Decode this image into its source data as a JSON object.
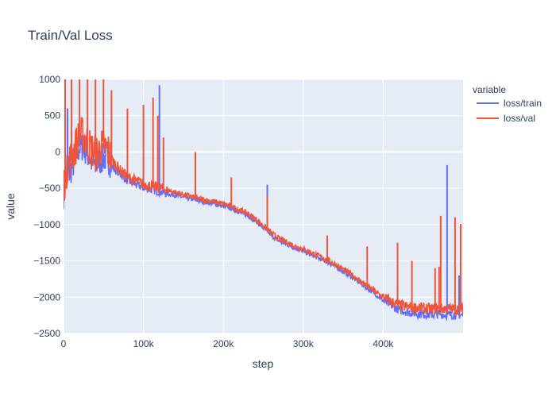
{
  "chart_data": {
    "type": "line",
    "title": "Train/Val Loss",
    "xlabel": "step",
    "ylabel": "value",
    "xlim": [
      0,
      500000
    ],
    "ylim": [
      -2500,
      1000
    ],
    "x_ticks": [
      {
        "value": 0,
        "label": "0"
      },
      {
        "value": 100000,
        "label": "100k"
      },
      {
        "value": 200000,
        "label": "200k"
      },
      {
        "value": 300000,
        "label": "300k"
      },
      {
        "value": 400000,
        "label": "400k"
      }
    ],
    "y_ticks": [
      {
        "value": -2500,
        "label": "−2500"
      },
      {
        "value": -2000,
        "label": "−2000"
      },
      {
        "value": -1500,
        "label": "−1500"
      },
      {
        "value": -1000,
        "label": "−1000"
      },
      {
        "value": -500,
        "label": "−500"
      },
      {
        "value": 0,
        "label": "0"
      },
      {
        "value": 500,
        "label": "500"
      },
      {
        "value": 1000,
        "label": "1000"
      }
    ],
    "grid": true,
    "legend": {
      "title": "variable",
      "position": "right"
    },
    "series": [
      {
        "name": "loss/train",
        "color": "#636efa",
        "x": [
          0,
          5000,
          10000,
          15000,
          20000,
          25000,
          30000,
          35000,
          40000,
          45000,
          50000,
          55000,
          60000,
          70000,
          80000,
          90000,
          100000,
          110000,
          120000,
          130000,
          140000,
          150000,
          160000,
          170000,
          180000,
          190000,
          200000,
          210000,
          220000,
          230000,
          240000,
          250000,
          260000,
          270000,
          280000,
          290000,
          300000,
          310000,
          320000,
          330000,
          340000,
          350000,
          360000,
          370000,
          380000,
          390000,
          400000,
          410000,
          420000,
          430000,
          440000,
          450000,
          460000,
          470000,
          480000,
          490000,
          500000
        ],
        "y": [
          -600,
          -350,
          -250,
          -100,
          50,
          50,
          -50,
          -150,
          -200,
          -150,
          -100,
          -100,
          -200,
          -300,
          -400,
          -450,
          -500,
          -520,
          -550,
          -580,
          -600,
          -630,
          -650,
          -680,
          -700,
          -720,
          -750,
          -780,
          -830,
          -880,
          -950,
          -1050,
          -1150,
          -1230,
          -1280,
          -1330,
          -1370,
          -1420,
          -1470,
          -1520,
          -1580,
          -1650,
          -1720,
          -1800,
          -1880,
          -1960,
          -2050,
          -2120,
          -2180,
          -2210,
          -2230,
          -2240,
          -2250,
          -2240,
          -2250,
          -2250,
          -2250
        ],
        "spikes": [
          {
            "x": 5000,
            "y": 600
          },
          {
            "x": 120000,
            "y": 920
          },
          {
            "x": 255000,
            "y": -450
          },
          {
            "x": 480000,
            "y": -180
          },
          {
            "x": 495000,
            "y": -1700
          }
        ]
      },
      {
        "name": "loss/val",
        "color": "#ef553b",
        "x": [
          0,
          5000,
          10000,
          15000,
          20000,
          25000,
          30000,
          35000,
          40000,
          45000,
          50000,
          55000,
          60000,
          70000,
          80000,
          90000,
          100000,
          110000,
          120000,
          130000,
          140000,
          150000,
          160000,
          170000,
          180000,
          190000,
          200000,
          210000,
          220000,
          230000,
          240000,
          250000,
          260000,
          270000,
          280000,
          290000,
          300000,
          310000,
          320000,
          330000,
          340000,
          350000,
          360000,
          370000,
          380000,
          390000,
          400000,
          410000,
          420000,
          430000,
          440000,
          450000,
          460000,
          470000,
          480000,
          490000,
          500000
        ],
        "y": [
          -500,
          -200,
          -100,
          50,
          200,
          200,
          100,
          0,
          -50,
          0,
          50,
          0,
          -100,
          -250,
          -350,
          -400,
          -450,
          -480,
          -500,
          -530,
          -560,
          -590,
          -620,
          -650,
          -670,
          -690,
          -720,
          -750,
          -800,
          -850,
          -920,
          -1020,
          -1120,
          -1200,
          -1250,
          -1300,
          -1340,
          -1390,
          -1440,
          -1490,
          -1550,
          -1620,
          -1690,
          -1770,
          -1850,
          -1930,
          -2000,
          -2070,
          -2120,
          -2140,
          -2150,
          -2160,
          -2170,
          -2160,
          -2170,
          -2170,
          -2170
        ],
        "spikes": [
          {
            "x": 2000,
            "y": 1000
          },
          {
            "x": 10000,
            "y": 1000
          },
          {
            "x": 20000,
            "y": 1000
          },
          {
            "x": 30000,
            "y": 1000
          },
          {
            "x": 40000,
            "y": 1000
          },
          {
            "x": 50000,
            "y": 1000
          },
          {
            "x": 60000,
            "y": 850
          },
          {
            "x": 80000,
            "y": 600
          },
          {
            "x": 100000,
            "y": 650
          },
          {
            "x": 112000,
            "y": 750
          },
          {
            "x": 118000,
            "y": 500
          },
          {
            "x": 125000,
            "y": 200
          },
          {
            "x": 165000,
            "y": 0
          },
          {
            "x": 210000,
            "y": -350
          },
          {
            "x": 255000,
            "y": -600
          },
          {
            "x": 330000,
            "y": -1150
          },
          {
            "x": 380000,
            "y": -1300
          },
          {
            "x": 418000,
            "y": -1250
          },
          {
            "x": 436000,
            "y": -1500
          },
          {
            "x": 465000,
            "y": -1600
          },
          {
            "x": 470000,
            "y": -1580
          },
          {
            "x": 472000,
            "y": -880
          },
          {
            "x": 490000,
            "y": -900
          },
          {
            "x": 497000,
            "y": -990
          }
        ]
      }
    ]
  }
}
